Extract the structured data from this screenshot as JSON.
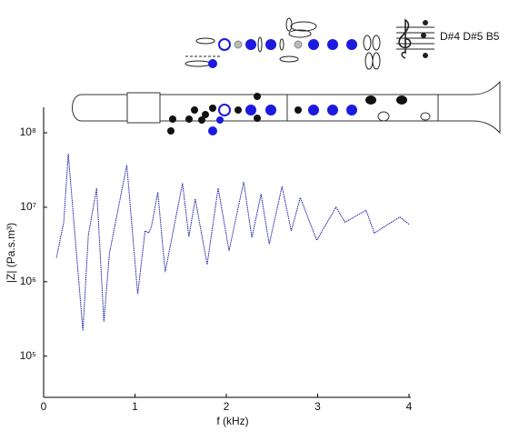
{
  "chart_data": {
    "type": "line",
    "xlabel": "f (kHz)",
    "ylabel": "|Z| (Pa.s.m³)",
    "annotation": "D#4 D#5 B5",
    "log_y": true,
    "color": "#1c1ca8",
    "xlim": [
      0,
      4
    ],
    "xticks": [
      0,
      1,
      2,
      3,
      4
    ],
    "ylim": [
      28000,
      220000000
    ],
    "yticks": [
      {
        "value": 100000,
        "label": "10⁵"
      },
      {
        "value": 1000000,
        "label": "10⁶"
      },
      {
        "value": 10000000,
        "label": "10⁷"
      },
      {
        "value": 100000000,
        "label": "10⁸"
      }
    ],
    "x": [
      0.14,
      0.22,
      0.27,
      0.43,
      0.49,
      0.58,
      0.66,
      0.72,
      0.91,
      1.03,
      1.11,
      1.15,
      1.18,
      1.25,
      1.33,
      1.52,
      1.59,
      1.66,
      1.79,
      1.91,
      2.03,
      2.19,
      2.28,
      2.38,
      2.47,
      2.61,
      2.71,
      2.81,
      2.99,
      3.2,
      3.3,
      3.53,
      3.62,
      3.9,
      4.0
    ],
    "values": [
      2100000,
      6300000,
      52000000,
      220000,
      4200000,
      18000000,
      290000,
      2400000,
      37000000,
      680000,
      4800000,
      4500000,
      5500000,
      16000000,
      1350000,
      21000000,
      4000000,
      13000000,
      1700000,
      18000000,
      2600000,
      22000000,
      3900000,
      15000000,
      3200000,
      19000000,
      4800000,
      13500000,
      3600000,
      10000000,
      6300000,
      9100000,
      4500000,
      7400000,
      5900000
    ]
  }
}
